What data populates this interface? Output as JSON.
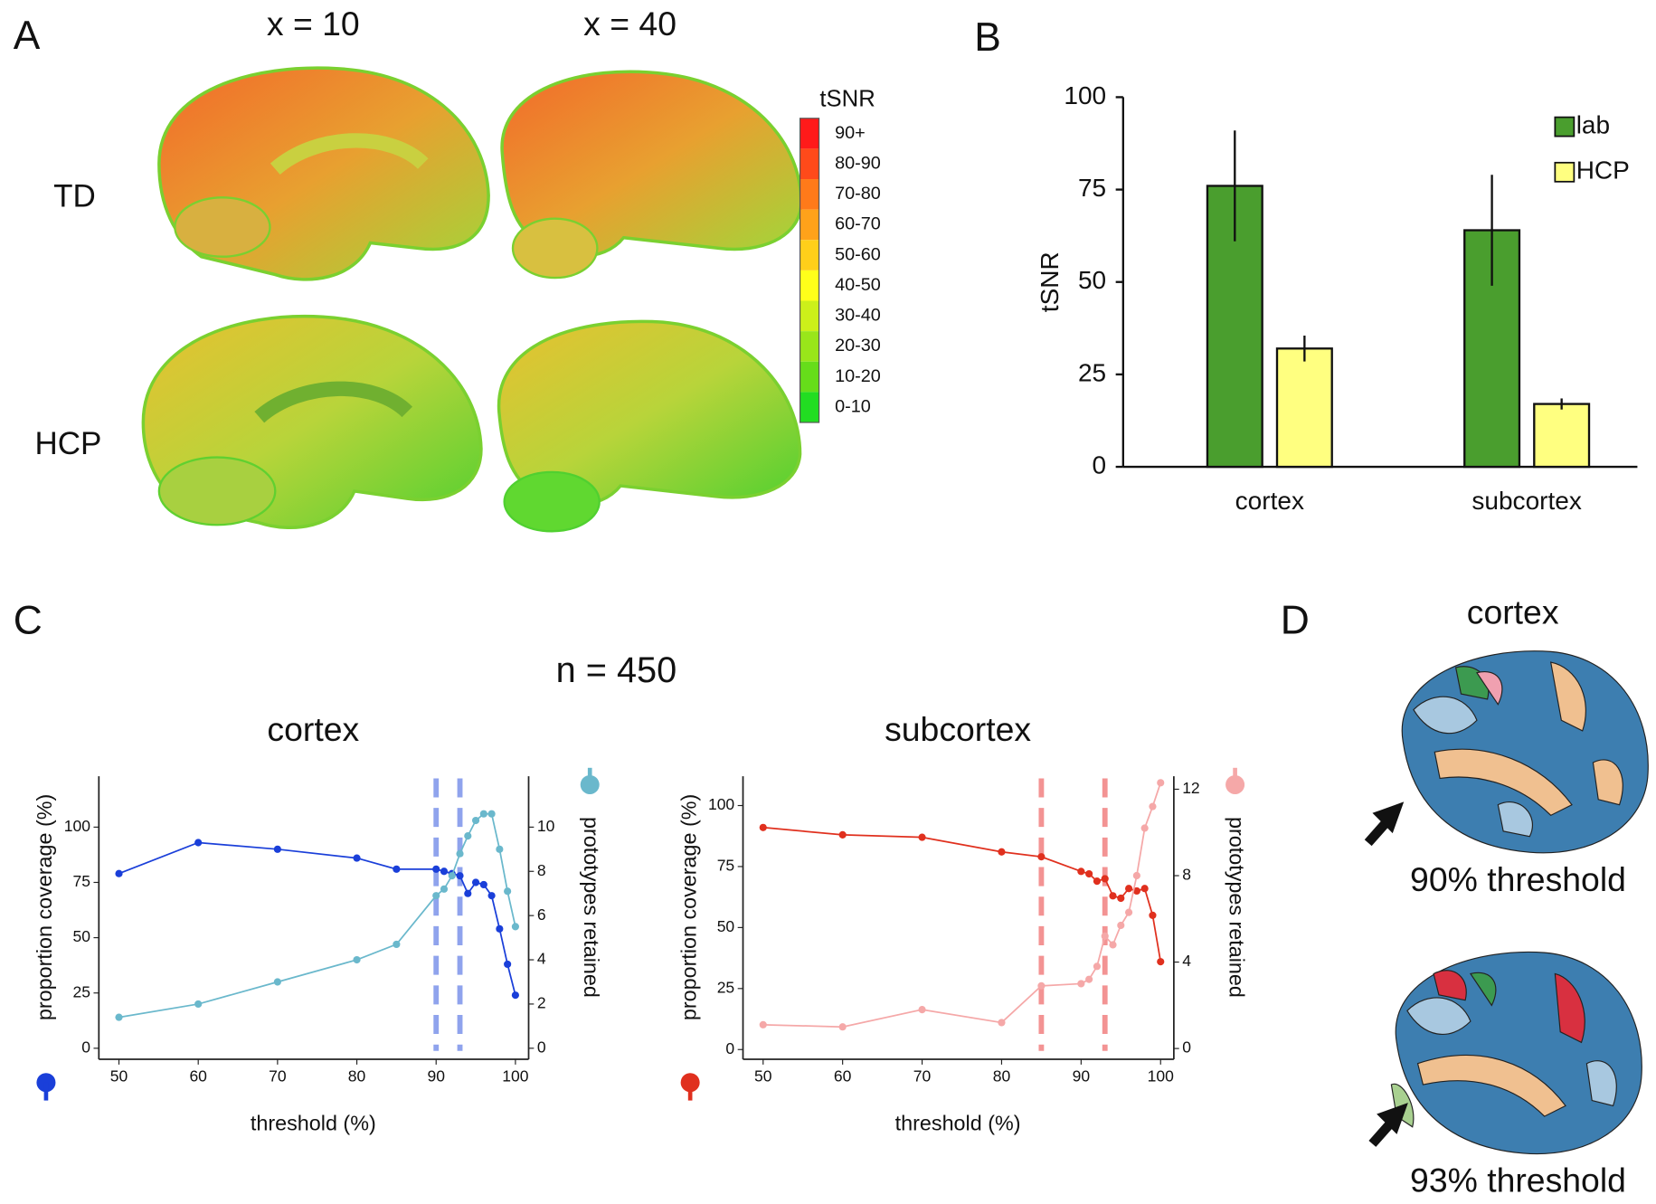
{
  "panel_labels": [
    "A",
    "B",
    "C",
    "D"
  ],
  "panel_a": {
    "columns": [
      "x = 10",
      "x = 40"
    ],
    "rows": [
      "TD",
      "HCP"
    ],
    "colorbar": {
      "title": "tSNR",
      "labels": [
        "90+",
        "80-90",
        "70-80",
        "60-70",
        "50-60",
        "40-50",
        "30-40",
        "20-30",
        "10-20",
        "0-10"
      ],
      "colors": [
        "#ff1a1a",
        "#ff4a1a",
        "#ff7a1a",
        "#ffa21a",
        "#ffcf1a",
        "#ffff1a",
        "#ccf01a",
        "#99e61a",
        "#66dd1a",
        "#22dd22"
      ]
    }
  },
  "panel_c_note": "n = 450",
  "panel_d": {
    "title": "cortex",
    "captions": [
      "90% threshold",
      "93% threshold"
    ]
  },
  "chart_data": [
    {
      "type": "bar",
      "ylabel": "tSNR",
      "categories": [
        "cortex",
        "subcortex"
      ],
      "series": [
        {
          "name": "lab",
          "color": "#4a9e2e",
          "values": [
            76,
            64
          ],
          "errors": [
            15,
            15
          ]
        },
        {
          "name": "HCP",
          "color": "#ffff80",
          "values": [
            32,
            17
          ],
          "errors": [
            3.5,
            1.5
          ]
        }
      ],
      "ylim": [
        0,
        100
      ],
      "yticks": [
        0,
        25,
        50,
        75,
        100
      ],
      "legend": "upper right"
    },
    {
      "type": "line",
      "title": "cortex",
      "xlabel": "threshold (%)",
      "ylabel": "proportion coverage (%)",
      "y2label": "prototypes retained",
      "x": [
        50,
        60,
        70,
        80,
        85,
        90,
        91,
        92,
        93,
        94,
        95,
        96,
        97,
        98,
        99,
        100
      ],
      "series": [
        {
          "color": "#1a3fd9",
          "axis": "y",
          "values": [
            79,
            93,
            90,
            86,
            81,
            81,
            80,
            79,
            78,
            70,
            75,
            74,
            69,
            54,
            38,
            24
          ]
        },
        {
          "color": "#6ab8cc",
          "axis": "y2",
          "values": [
            1.4,
            2.0,
            3.0,
            4.0,
            4.7,
            6.9,
            7.2,
            7.8,
            8.8,
            9.6,
            10.3,
            10.6,
            10.6,
            9.0,
            7.1,
            5.5
          ]
        }
      ],
      "vlines": [
        90,
        93
      ],
      "vline_color": "#6a85e8",
      "xlim": [
        48,
        101
      ],
      "xticks": [
        50,
        60,
        70,
        80,
        90,
        100
      ],
      "ylim": [
        -5,
        123
      ],
      "yticks": [
        0,
        25,
        50,
        75,
        100
      ],
      "y2lim": [
        -0.5,
        12.3
      ],
      "y2ticks": [
        0,
        2,
        4,
        6,
        8,
        10
      ]
    },
    {
      "type": "line",
      "title": "subcortex",
      "xlabel": "threshold (%)",
      "ylabel": "proportion coverage (%)",
      "y2label": "prototypes retained",
      "x": [
        50,
        60,
        70,
        80,
        85,
        90,
        91,
        92,
        93,
        94,
        95,
        96,
        97,
        98,
        99,
        100
      ],
      "series": [
        {
          "color": "#e0301e",
          "axis": "y",
          "values": [
            91,
            88,
            87,
            81,
            79,
            73,
            72,
            69,
            70,
            63,
            62,
            66,
            65,
            66,
            55,
            36
          ]
        },
        {
          "color": "#f5a8a8",
          "axis": "y2",
          "values": [
            1.1,
            1.0,
            1.8,
            1.2,
            2.9,
            3.0,
            3.2,
            3.8,
            5.2,
            4.8,
            5.7,
            6.3,
            8.0,
            10.2,
            11.2,
            12.3
          ]
        }
      ],
      "vlines": [
        85,
        93
      ],
      "vline_color": "#f07070",
      "xlim": [
        48,
        101
      ],
      "xticks": [
        50,
        60,
        70,
        80,
        90,
        100
      ],
      "ylim": [
        -4,
        112
      ],
      "yticks": [
        0,
        25,
        50,
        75,
        100
      ],
      "y2lim": [
        -0.5,
        12.6
      ],
      "y2ticks": [
        0,
        4,
        8,
        12
      ]
    }
  ]
}
